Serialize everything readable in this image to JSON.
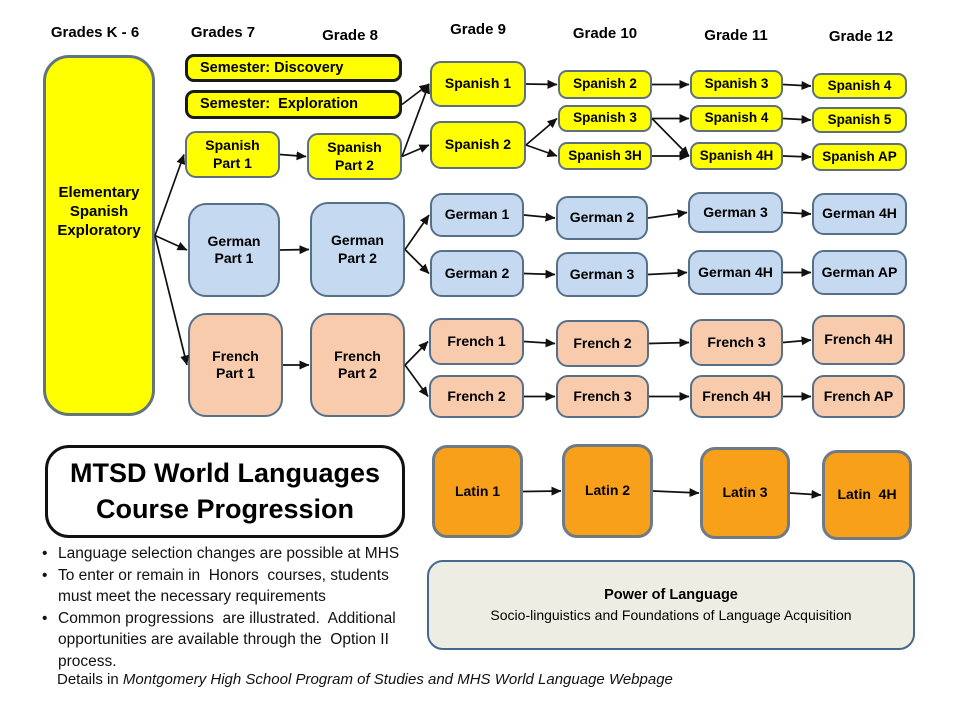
{
  "headers": {
    "k6": "Grades K - 6",
    "g7": "Grades 7",
    "g8": "Grade 8",
    "g9": "Grade 9",
    "g10": "Grade 10",
    "g11": "Grade 11",
    "g12": "Grade 12"
  },
  "title": "MTSD World Languages\nCourse Progression",
  "nodes": {
    "elementary": "Elementary\nSpanish\nExploratory",
    "semester_discovery": "Semester: Discovery",
    "semester_exploration": "Semester:  Exploration",
    "spanish_part1": "Spanish\nPart 1",
    "spanish_part2": "Spanish\nPart 2",
    "spanish1_g9": "Spanish 1",
    "spanish2_g9": "Spanish 2",
    "spanish2_g10": "Spanish 2",
    "spanish3_g10": "Spanish 3",
    "spanish3h_g10": "Spanish 3H",
    "spanish3_g11": "Spanish 3",
    "spanish4_g11": "Spanish 4",
    "spanish4h_g11": "Spanish 4H",
    "spanish4_g12": "Spanish 4",
    "spanish5_g12": "Spanish 5",
    "spanishap_g12": "Spanish AP",
    "german_part1": "German\nPart 1",
    "german_part2": "German\nPart 2",
    "german1_g9": "German 1",
    "german2_g9": "German 2",
    "german2_g10": "German 2",
    "german3_g10": "German 3",
    "german3_g11": "German 3",
    "german4h_g11": "German 4H",
    "german4h_g12": "German 4H",
    "germanap_g12": "German AP",
    "french_part1": "French\nPart 1",
    "french_part2": "French\nPart 2",
    "french1_g9": "French 1",
    "french2_g9": "French 2",
    "french2_g10": "French 2",
    "french3_g10": "French 3",
    "french3_g11": "French 3",
    "french4h_g11": "French 4H",
    "french4h_g12": "French 4H",
    "frenchap_g12": "French AP",
    "latin1": "Latin 1",
    "latin2": "Latin 2",
    "latin3": "Latin 3",
    "latin4h": "Latin  4H"
  },
  "power": {
    "title": "Power of Language",
    "subtitle": "Socio-linguistics and Foundations of Language Acquisition"
  },
  "bullets": [
    "Language selection changes are possible at MHS",
    "To enter or remain in  Honors  courses, students\nmust meet the necessary requirements",
    "Common progressions  are illustrated.  Additional\nopportunities are available through the  Option II\nprocess."
  ],
  "details": {
    "prefix": "Details in ",
    "italic": "Montgomery High School  Program of Studies and MHS World Language Webpage"
  },
  "edges": [
    [
      "elementary",
      "spanish_part1"
    ],
    [
      "elementary",
      "german_part1"
    ],
    [
      "elementary",
      "french_part1"
    ],
    [
      "semester_exploration",
      "spanish1_g9"
    ],
    [
      "spanish_part1",
      "spanish_part2"
    ],
    [
      "spanish_part2",
      "spanish1_g9"
    ],
    [
      "spanish_part2",
      "spanish2_g9"
    ],
    [
      "spanish1_g9",
      "spanish2_g10"
    ],
    [
      "spanish2_g10",
      "spanish3_g11"
    ],
    [
      "spanish3_g11",
      "spanish4_g12"
    ],
    [
      "spanish2_g9",
      "spanish3_g10"
    ],
    [
      "spanish2_g9",
      "spanish3h_g10"
    ],
    [
      "spanish3_g10",
      "spanish4_g11"
    ],
    [
      "spanish3_g10",
      "spanish4h_g11"
    ],
    [
      "spanish3h_g10",
      "spanish4h_g11"
    ],
    [
      "spanish4_g11",
      "spanish5_g12"
    ],
    [
      "spanish4h_g11",
      "spanishap_g12"
    ],
    [
      "german_part1",
      "german_part2"
    ],
    [
      "german_part2",
      "german1_g9"
    ],
    [
      "german_part2",
      "german2_g9"
    ],
    [
      "german1_g9",
      "german2_g10"
    ],
    [
      "german2_g10",
      "german3_g11"
    ],
    [
      "german3_g11",
      "german4h_g12"
    ],
    [
      "german2_g9",
      "german3_g10"
    ],
    [
      "german3_g10",
      "german4h_g11"
    ],
    [
      "german4h_g11",
      "germanap_g12"
    ],
    [
      "french_part1",
      "french_part2"
    ],
    [
      "french_part2",
      "french1_g9"
    ],
    [
      "french_part2",
      "french2_g9"
    ],
    [
      "french1_g9",
      "french2_g10"
    ],
    [
      "french2_g10",
      "french3_g11"
    ],
    [
      "french3_g11",
      "french4h_g12"
    ],
    [
      "french2_g9",
      "french3_g10"
    ],
    [
      "french3_g10",
      "french4h_g11"
    ],
    [
      "french4h_g11",
      "frenchap_g12"
    ],
    [
      "latin1",
      "latin2"
    ],
    [
      "latin2",
      "latin3"
    ],
    [
      "latin3",
      "latin4h"
    ]
  ],
  "colors": {
    "yellow_fill": "#FFFF00",
    "blue_fill": "#C5D9F1",
    "peach_fill": "#F8CBAD",
    "orange_fill": "#F9A01B",
    "course_border": "#5E7080",
    "semester_border": "#1A1A1A",
    "power_fill": "#EEEDE3",
    "power_border": "#44698D",
    "arrow": "#111111"
  }
}
